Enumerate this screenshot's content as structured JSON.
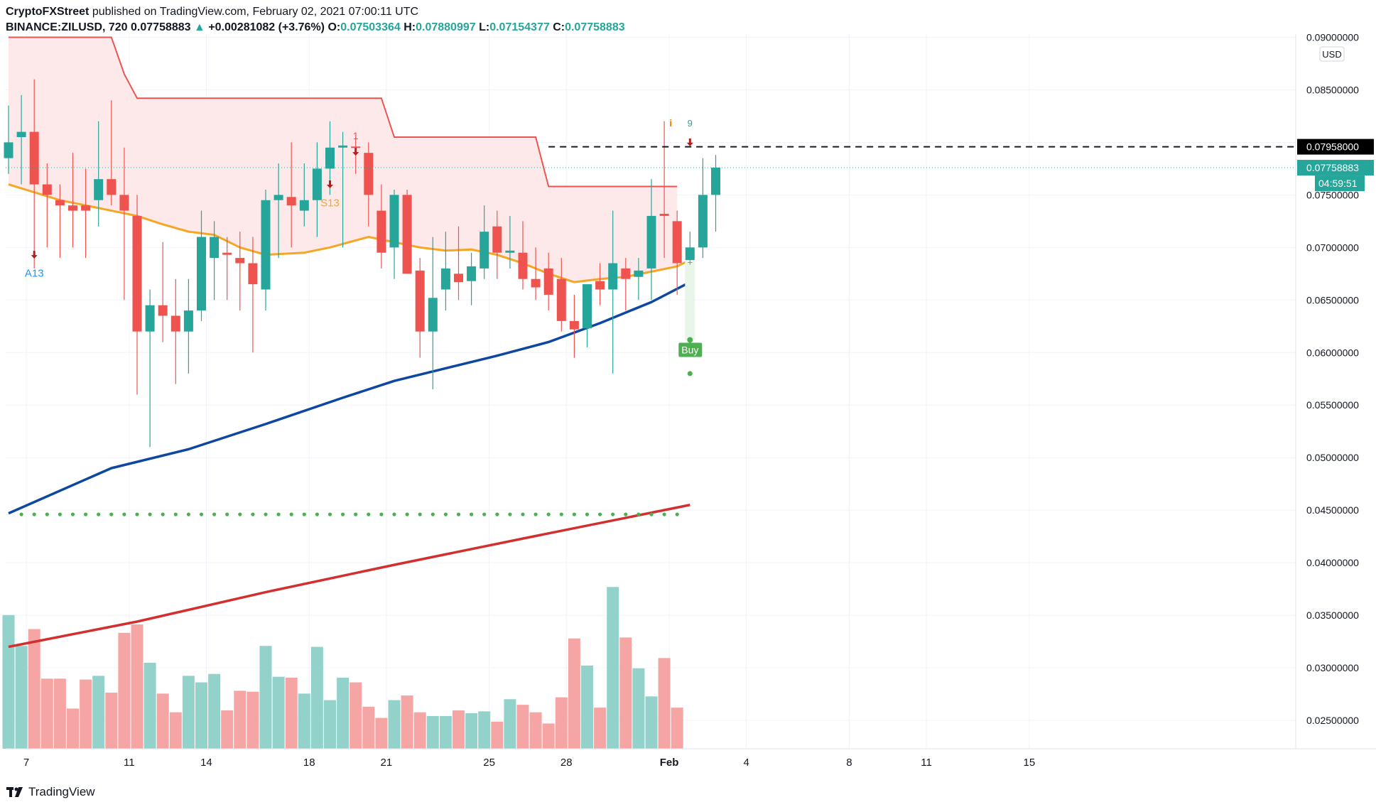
{
  "header": {
    "publisher": "CryptoFXStreet",
    "published_text": "published on TradingView.com, February 02, 2021 07:00:11 UTC",
    "symbol": "BINANCE:ZILUSD, 720",
    "last": "0.07758883",
    "change": "+0.00281082 (+3.76%)",
    "open_label": "O:",
    "open": "0.07503364",
    "high_label": "H:",
    "high": "0.07880997",
    "low_label": "L:",
    "low": "0.07154377",
    "close_label": "C:",
    "close": "0.07758883"
  },
  "footer": {
    "brand": "TradingView"
  },
  "colors": {
    "up": "#26a69a",
    "down": "#ef5350",
    "vol_up": "#93d2cb",
    "vol_down": "#f5a5a3",
    "ema_short": "#f5a623",
    "ema_mid": "#0d47a1",
    "ema_long": "#d32f2f",
    "supertrend": "#ef5350",
    "supertrend_fill": "#fde9e9",
    "buy": "#4caf50"
  },
  "chart_data": {
    "type": "candlestick",
    "currency": "USD",
    "y_ticks": [
      "0.08500000",
      "0.08000000",
      "0.07500000",
      "0.07000000",
      "0.06500000",
      "0.06000000",
      "0.05500000",
      "0.05000000",
      "0.04500000",
      "0.04000000",
      "0.03500000",
      "0.03000000",
      "0.02500000"
    ],
    "y_top_tick": "0.09000000",
    "ylim": [
      0.0223,
      0.0903
    ],
    "x_ticks": [
      {
        "label": "7",
        "i": 0.5
      },
      {
        "label": "11",
        "i": 8.5
      },
      {
        "label": "14",
        "i": 14.5
      },
      {
        "label": "18",
        "i": 22.5
      },
      {
        "label": "21",
        "i": 28.5
      },
      {
        "label": "25",
        "i": 36.5
      },
      {
        "label": "28",
        "i": 42.5
      },
      {
        "label": "Feb",
        "i": 50.5,
        "bold": true
      },
      {
        "label": "4",
        "i": 56.5
      },
      {
        "label": "8",
        "i": 64.5
      },
      {
        "label": "11",
        "i": 70.5
      },
      {
        "label": "15",
        "i": 78.5
      }
    ],
    "price_labels": {
      "resistance": "0.07958000",
      "last": "0.07758883",
      "countdown": "04:59:51"
    },
    "resistance": 0.07958,
    "candles": [
      [
        0.0785,
        0.0835,
        0.077,
        0.08
      ],
      [
        0.0805,
        0.0845,
        0.076,
        0.081
      ],
      [
        0.081,
        0.086,
        0.068,
        0.076
      ],
      [
        0.076,
        0.078,
        0.07,
        0.075
      ],
      [
        0.0745,
        0.076,
        0.069,
        0.074
      ],
      [
        0.074,
        0.079,
        0.07,
        0.0735
      ],
      [
        0.074,
        0.0775,
        0.069,
        0.0735
      ],
      [
        0.0745,
        0.082,
        0.072,
        0.0765
      ],
      [
        0.0765,
        0.084,
        0.074,
        0.075
      ],
      [
        0.075,
        0.0795,
        0.065,
        0.0735
      ],
      [
        0.073,
        0.075,
        0.056,
        0.062
      ],
      [
        0.062,
        0.066,
        0.051,
        0.0645
      ],
      [
        0.0645,
        0.0705,
        0.061,
        0.0635
      ],
      [
        0.0635,
        0.067,
        0.057,
        0.062
      ],
      [
        0.062,
        0.067,
        0.058,
        0.064
      ],
      [
        0.064,
        0.0735,
        0.063,
        0.071
      ],
      [
        0.069,
        0.0725,
        0.065,
        0.071
      ],
      [
        0.0695,
        0.071,
        0.065,
        0.0693
      ],
      [
        0.069,
        0.0715,
        0.064,
        0.0685
      ],
      [
        0.0685,
        0.071,
        0.06,
        0.0665
      ],
      [
        0.066,
        0.0755,
        0.064,
        0.0745
      ],
      [
        0.0745,
        0.078,
        0.069,
        0.075
      ],
      [
        0.0748,
        0.08,
        0.07,
        0.074
      ],
      [
        0.0735,
        0.078,
        0.072,
        0.0745
      ],
      [
        0.0745,
        0.08,
        0.071,
        0.0775
      ],
      [
        0.0775,
        0.082,
        0.075,
        0.0795
      ],
      [
        0.0795,
        0.081,
        0.07,
        0.0797
      ],
      [
        0.0796,
        0.0805,
        0.077,
        0.0795
      ],
      [
        0.079,
        0.08,
        0.072,
        0.075
      ],
      [
        0.0735,
        0.076,
        0.068,
        0.0695
      ],
      [
        0.07,
        0.0755,
        0.067,
        0.075
      ],
      [
        0.075,
        0.0755,
        0.068,
        0.0675
      ],
      [
        0.0678,
        0.069,
        0.0595,
        0.062
      ],
      [
        0.062,
        0.071,
        0.0565,
        0.0652
      ],
      [
        0.066,
        0.0715,
        0.064,
        0.068
      ],
      [
        0.0675,
        0.072,
        0.065,
        0.0667
      ],
      [
        0.0668,
        0.0695,
        0.0645,
        0.0682
      ],
      [
        0.068,
        0.074,
        0.067,
        0.0715
      ],
      [
        0.072,
        0.0735,
        0.067,
        0.0695
      ],
      [
        0.0695,
        0.073,
        0.068,
        0.0697
      ],
      [
        0.0695,
        0.0725,
        0.066,
        0.067
      ],
      [
        0.067,
        0.07,
        0.065,
        0.0662
      ],
      [
        0.068,
        0.0695,
        0.064,
        0.0655
      ],
      [
        0.067,
        0.069,
        0.062,
        0.063
      ],
      [
        0.063,
        0.0655,
        0.0595,
        0.0622
      ],
      [
        0.0623,
        0.0665,
        0.0605,
        0.0665
      ],
      [
        0.0668,
        0.0685,
        0.0645,
        0.066
      ],
      [
        0.066,
        0.0735,
        0.058,
        0.0685
      ],
      [
        0.068,
        0.069,
        0.064,
        0.067
      ],
      [
        0.0672,
        0.069,
        0.065,
        0.0678
      ],
      [
        0.068,
        0.0765,
        0.065,
        0.073
      ],
      [
        0.0732,
        0.082,
        0.069,
        0.073
      ],
      [
        0.0725,
        0.0735,
        0.0655,
        0.0685
      ],
      [
        0.0685,
        0.0715,
        0.067,
        0.07
      ],
      [
        0.07,
        0.0785,
        0.069,
        0.075
      ],
      [
        0.075,
        0.0788,
        0.0715,
        0.0776
      ]
    ],
    "volume_scale": 0.0416,
    "volume": [
      0.0366,
      0.0333,
      0.0351,
      0.0298,
      0.0298,
      0.0266,
      0.0297,
      0.0301,
      0.0283,
      0.0347,
      0.0356,
      0.0315,
      0.0282,
      0.0262,
      0.0301,
      0.0294,
      0.0303,
      0.0264,
      0.0285,
      0.0284,
      0.0333,
      0.03,
      0.0299,
      0.0282,
      0.0332,
      0.0275,
      0.0299,
      0.0294,
      0.0268,
      0.0256,
      0.0275,
      0.028,
      0.0262,
      0.0258,
      0.0258,
      0.0264,
      0.0261,
      0.0263,
      0.0252,
      0.0276,
      0.027,
      0.0262,
      0.025,
      0.0278,
      0.0341,
      0.0312,
      0.0267,
      0.0396,
      0.0342,
      0.0309,
      0.0279,
      0.032,
      0.0267
    ],
    "series": [
      {
        "name": "EMA short",
        "points": [
          [
            0,
            0.076
          ],
          [
            4,
            0.0745
          ],
          [
            8,
            0.0735
          ],
          [
            10,
            0.073
          ],
          [
            12,
            0.0722
          ],
          [
            14,
            0.0715
          ],
          [
            16,
            0.0712
          ],
          [
            18,
            0.07
          ],
          [
            20,
            0.0693
          ],
          [
            23,
            0.0695
          ],
          [
            25,
            0.07
          ],
          [
            28,
            0.071
          ],
          [
            30,
            0.0705
          ],
          [
            32,
            0.07
          ],
          [
            34,
            0.0697
          ],
          [
            36,
            0.0698
          ],
          [
            38,
            0.0693
          ],
          [
            40,
            0.0685
          ],
          [
            42,
            0.0675
          ],
          [
            44,
            0.0667
          ],
          [
            46,
            0.067
          ],
          [
            48,
            0.0672
          ],
          [
            50,
            0.0677
          ],
          [
            52,
            0.0682
          ],
          [
            53,
            0.0688
          ]
        ]
      },
      {
        "name": "EMA mid",
        "points": [
          [
            0,
            0.0447
          ],
          [
            8,
            0.049
          ],
          [
            14,
            0.0508
          ],
          [
            20,
            0.0532
          ],
          [
            26,
            0.0557
          ],
          [
            30,
            0.0573
          ],
          [
            34,
            0.0585
          ],
          [
            38,
            0.0597
          ],
          [
            42,
            0.061
          ],
          [
            46,
            0.0628
          ],
          [
            50,
            0.0648
          ],
          [
            53,
            0.0667
          ]
        ]
      },
      {
        "name": "EMA long",
        "points": [
          [
            0,
            0.032
          ],
          [
            10,
            0.0344
          ],
          [
            20,
            0.0372
          ],
          [
            30,
            0.0398
          ],
          [
            40,
            0.0423
          ],
          [
            53,
            0.0455
          ]
        ]
      },
      {
        "name": "Supertrend",
        "points": [
          [
            0,
            0.09
          ],
          [
            8,
            0.09
          ],
          [
            9,
            0.0865
          ],
          [
            10,
            0.0842
          ],
          [
            29,
            0.0842
          ],
          [
            30,
            0.0805
          ],
          [
            41,
            0.0805
          ],
          [
            42,
            0.0758
          ],
          [
            52,
            0.0758
          ]
        ]
      }
    ],
    "dots_level": 0.0446,
    "annotations": {
      "a13": "A13",
      "s13": "S13",
      "one": "1",
      "nine": "9",
      "info": "i",
      "buy": "Buy",
      "plus": "+"
    }
  }
}
